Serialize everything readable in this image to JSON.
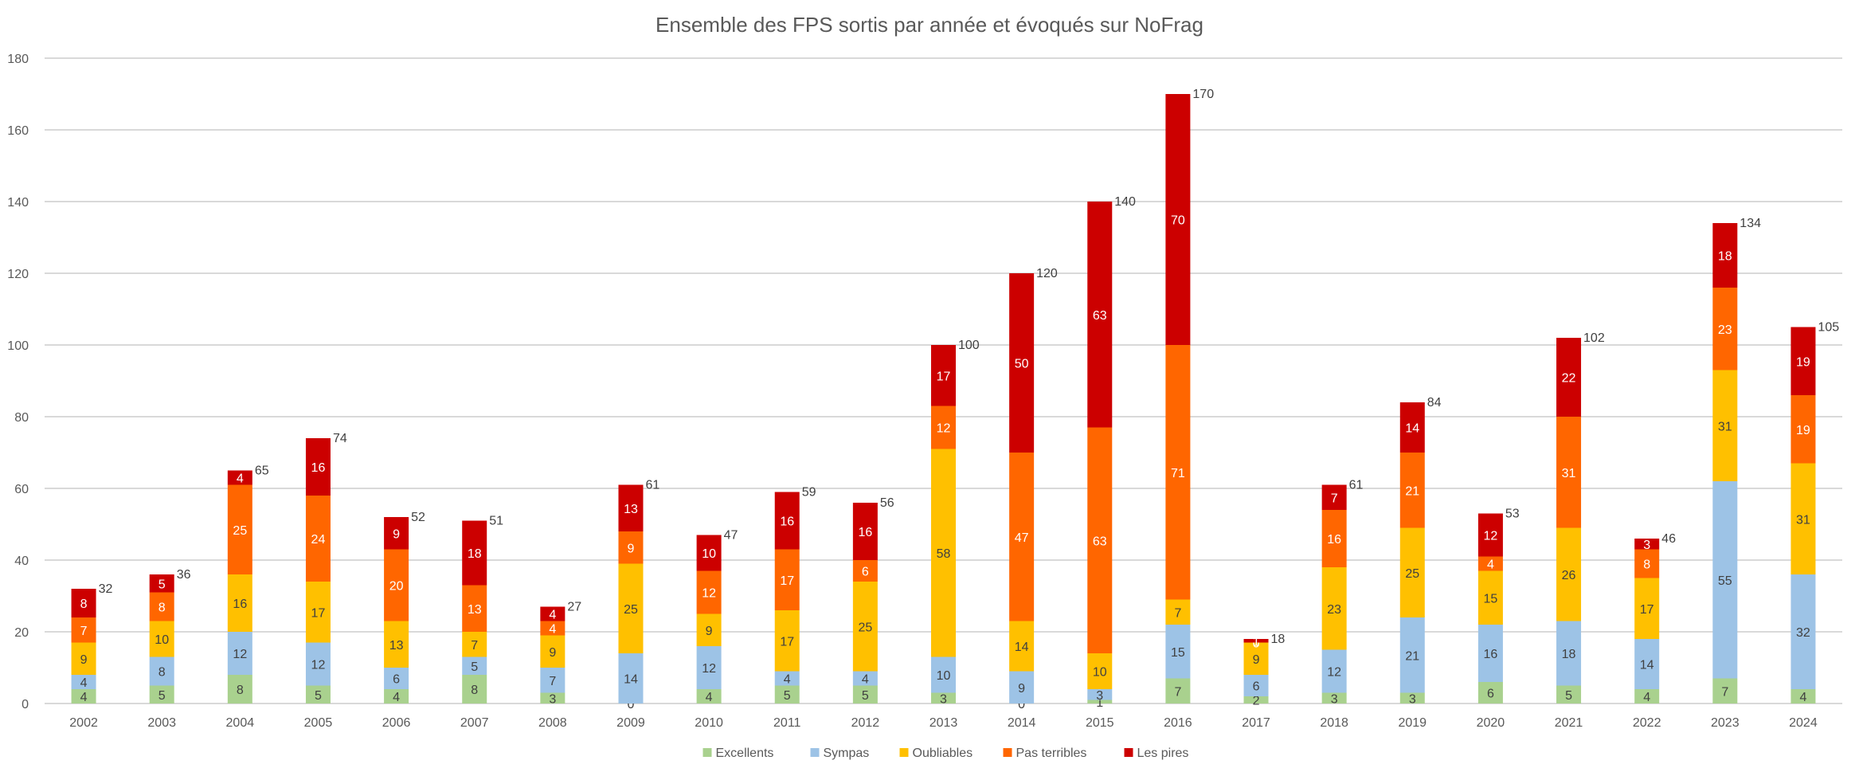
{
  "chart_data": {
    "type": "bar",
    "stacked": true,
    "title": "Ensemble des FPS sortis par année et évoqués sur NoFrag",
    "xlabel": "",
    "ylabel": "",
    "ylim": [
      0,
      180
    ],
    "yticks": [
      0,
      20,
      40,
      60,
      80,
      100,
      120,
      140,
      160,
      180
    ],
    "grid": true,
    "legend_position": "bottom",
    "categories": [
      "2002",
      "2003",
      "2004",
      "2005",
      "2006",
      "2007",
      "2008",
      "2009",
      "2010",
      "2011",
      "2012",
      "2013",
      "2014",
      "2015",
      "2016",
      "2017",
      "2018",
      "2019",
      "2020",
      "2021",
      "2022",
      "2023",
      "2024"
    ],
    "series": [
      {
        "name": "Excellents",
        "color": "#A9D18E",
        "label_color": "#404040",
        "values": [
          4,
          5,
          8,
          5,
          4,
          8,
          3,
          0,
          4,
          5,
          5,
          3,
          0,
          1,
          7,
          2,
          3,
          3,
          6,
          5,
          4,
          7,
          4
        ]
      },
      {
        "name": "Sympas",
        "color": "#9DC3E6",
        "label_color": "#404040",
        "values": [
          4,
          8,
          12,
          12,
          6,
          5,
          7,
          14,
          12,
          4,
          4,
          10,
          9,
          3,
          15,
          6,
          12,
          21,
          16,
          18,
          14,
          55,
          32
        ]
      },
      {
        "name": "Oubliables",
        "color": "#FFC000",
        "label_color": "#404040",
        "values": [
          9,
          10,
          16,
          17,
          13,
          7,
          9,
          25,
          9,
          17,
          25,
          58,
          14,
          10,
          7,
          9,
          23,
          25,
          15,
          26,
          17,
          31,
          31
        ]
      },
      {
        "name": "Pas terribles",
        "color": "#FF6600",
        "label_color": "#FFFFFF",
        "values": [
          7,
          8,
          25,
          24,
          20,
          13,
          4,
          9,
          12,
          17,
          6,
          12,
          47,
          63,
          71,
          0,
          16,
          21,
          4,
          31,
          8,
          23,
          19
        ]
      },
      {
        "name": "Les pires",
        "color": "#CC0000",
        "label_color": "#FFFFFF",
        "values": [
          8,
          5,
          4,
          16,
          9,
          18,
          4,
          13,
          10,
          16,
          16,
          17,
          50,
          63,
          70,
          1,
          7,
          14,
          12,
          22,
          3,
          18,
          19
        ]
      }
    ],
    "totals": [
      32,
      36,
      65,
      74,
      52,
      51,
      27,
      61,
      47,
      59,
      56,
      100,
      120,
      140,
      170,
      18,
      61,
      84,
      53,
      102,
      46,
      134,
      105
    ]
  }
}
